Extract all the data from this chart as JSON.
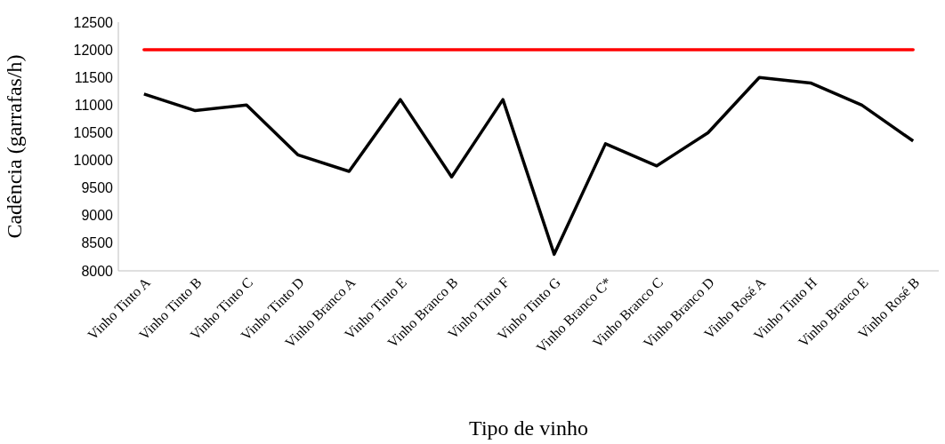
{
  "chart_data": {
    "type": "line",
    "xlabel": "Tipo de vinho",
    "ylabel": "Cadência (garrafas/h)",
    "categories": [
      "Vinho Tinto A",
      "Vinho Tinto B",
      "Vinho Tinto C",
      "Vinho Tinto D",
      "Vinho Branco A",
      "Vinho Tinto E",
      "Vinho Branco B",
      "Vinho Tinto F",
      "Vinho Tinto G",
      "Vinho Branco C*",
      "Vinho Branco C",
      "Vinho Branco D",
      "Vinho Rosé A",
      "Vinho Tinto H",
      "Vinho Branco E",
      "Vinho Rosé B"
    ],
    "series": [
      {
        "color": "#000000",
        "values": [
          11200,
          10900,
          11000,
          10100,
          9800,
          11100,
          9700,
          11100,
          8300,
          10300,
          9900,
          10500,
          11500,
          11400,
          11000,
          10350
        ]
      }
    ],
    "ref_lines": [
      {
        "axis": "y",
        "value": 12000,
        "color": "#ff0000"
      }
    ],
    "ylim": [
      8000,
      12500
    ],
    "yticks": [
      8000,
      8500,
      9000,
      9500,
      10000,
      10500,
      11000,
      11500,
      12000,
      12500
    ],
    "grid": false,
    "marker": "none",
    "line_style": "solid"
  }
}
